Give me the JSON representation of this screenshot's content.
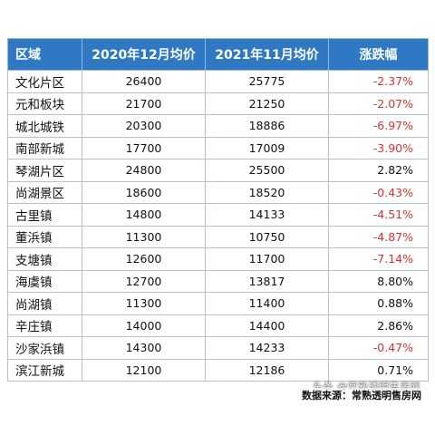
{
  "table": {
    "headers": [
      "区域",
      "2020年12月均价",
      "2021年11月均价",
      "涨跌幅"
    ],
    "rows": [
      {
        "area": "文化片区",
        "dec2020": "26400",
        "nov2021": "25775",
        "change": "-2.37%",
        "trend": "down"
      },
      {
        "area": "元和板块",
        "dec2020": "21700",
        "nov2021": "21250",
        "change": "-2.07%",
        "trend": "down"
      },
      {
        "area": "城北城铁",
        "dec2020": "20300",
        "nov2021": "18886",
        "change": "-6.97%",
        "trend": "down"
      },
      {
        "area": "南部新城",
        "dec2020": "17700",
        "nov2021": "17009",
        "change": "-3.90%",
        "trend": "down"
      },
      {
        "area": "琴湖片区",
        "dec2020": "24800",
        "nov2021": "25500",
        "change": "2.82%",
        "trend": "up"
      },
      {
        "area": "尚湖景区",
        "dec2020": "18600",
        "nov2021": "18520",
        "change": "-0.43%",
        "trend": "down"
      },
      {
        "area": "古里镇",
        "dec2020": "14800",
        "nov2021": "14133",
        "change": "-4.51%",
        "trend": "down"
      },
      {
        "area": "董浜镇",
        "dec2020": "11300",
        "nov2021": "10750",
        "change": "-4.87%",
        "trend": "down"
      },
      {
        "area": "支塘镇",
        "dec2020": "12600",
        "nov2021": "11700",
        "change": "-7.14%",
        "trend": "down"
      },
      {
        "area": "海虞镇",
        "dec2020": "12700",
        "nov2021": "13817",
        "change": "8.80%",
        "trend": "up"
      },
      {
        "area": "尚湖镇",
        "dec2020": "11300",
        "nov2021": "11400",
        "change": "0.88%",
        "trend": "up"
      },
      {
        "area": "辛庄镇",
        "dec2020": "14000",
        "nov2021": "14400",
        "change": "2.86%",
        "trend": "up"
      },
      {
        "area": "沙家浜镇",
        "dec2020": "14300",
        "nov2021": "14233",
        "change": "-0.47%",
        "trend": "down"
      },
      {
        "area": "滨江新城",
        "dec2020": "12100",
        "nov2021": "12186",
        "change": "0.71%",
        "trend": "up"
      }
    ]
  },
  "watermark": "头条 @常熟透明售房网",
  "source_note": "数据来源：常熟透明售房网",
  "colors": {
    "header_bg": "#2f78c4",
    "negative": "#d9322e",
    "positive": "#111111"
  }
}
